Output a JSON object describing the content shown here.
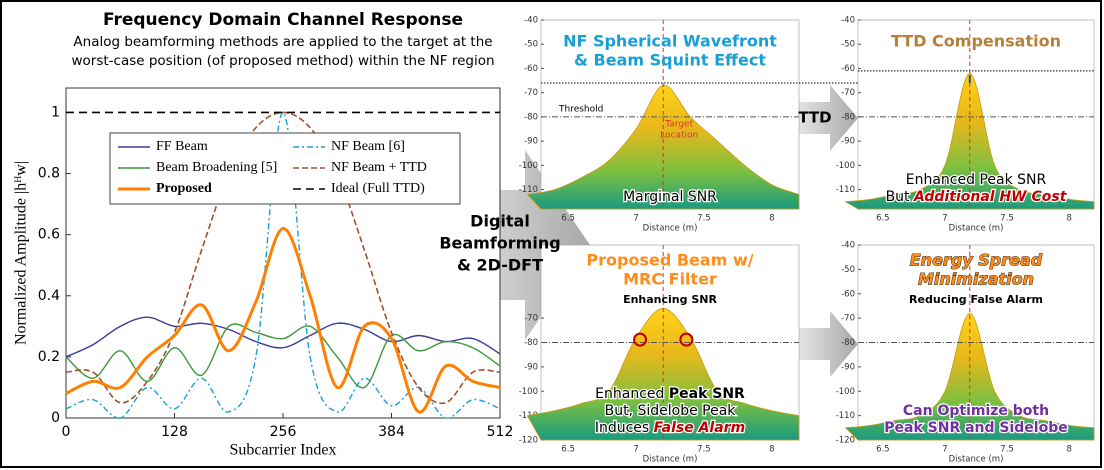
{
  "chart_data": [
    {
      "type": "line",
      "title": "Frequency Domain Channel Response",
      "subtitle": [
        "Analog beamforming methods are applied to the target at the",
        "worst-case position (of proposed method) within the NF region"
      ],
      "xlabel": "Subcarrier Index",
      "ylabel": "Normalized Amplitude |hᴴw|",
      "x": [
        0,
        32,
        64,
        96,
        128,
        160,
        192,
        224,
        256,
        288,
        320,
        352,
        384,
        416,
        448,
        480,
        512
      ],
      "xlim": [
        0,
        512
      ],
      "xticks": [
        0,
        128,
        256,
        384,
        512
      ],
      "ylim": [
        0,
        1.08
      ],
      "yticks": [
        0,
        0.2,
        0.4,
        0.6,
        0.8,
        1
      ],
      "series": [
        {
          "name": "FF Beam",
          "color": "#3b3ba0",
          "dash": "",
          "width": 1.4,
          "values": [
            0.2,
            0.24,
            0.3,
            0.33,
            0.3,
            0.31,
            0.29,
            0.25,
            0.23,
            0.27,
            0.31,
            0.29,
            0.25,
            0.27,
            0.25,
            0.26,
            0.21
          ]
        },
        {
          "name": "NF Beam [6]",
          "color": "#1a9fd4",
          "dash": "6 3 2 3",
          "width": 1.4,
          "values": [
            0.03,
            0.06,
            0,
            0.1,
            0.03,
            0.13,
            0.02,
            0.2,
            1,
            0.2,
            0.02,
            0.13,
            0.04,
            0.1,
            0,
            0.06,
            0.03
          ]
        },
        {
          "name": "Beam Broadening [5]",
          "color": "#3a9a3a",
          "dash": "",
          "width": 1.4,
          "values": [
            0.2,
            0.13,
            0.22,
            0.12,
            0.23,
            0.14,
            0.3,
            0.28,
            0.26,
            0.3,
            0.2,
            0.1,
            0.27,
            0.22,
            0.25,
            0.23,
            0.17
          ]
        },
        {
          "name": "NF Beam + TTD",
          "color": "#a0522d",
          "dash": "6 3",
          "width": 1.6,
          "values": [
            0.15,
            0.15,
            0.05,
            0.12,
            0.28,
            0.55,
            0.8,
            0.95,
            1,
            0.95,
            0.8,
            0.55,
            0.28,
            0.1,
            0.05,
            0.15,
            0.15
          ]
        },
        {
          "name": "Proposed",
          "color": "#ff8000",
          "dash": "",
          "width": 3,
          "bold": true,
          "values": [
            0.08,
            0.12,
            0.1,
            0.2,
            0.27,
            0.37,
            0.22,
            0.38,
            0.62,
            0.4,
            0.1,
            0.3,
            0.26,
            0.02,
            0.17,
            0.12,
            0.1
          ]
        },
        {
          "name": "Ideal (Full TTD)",
          "color": "#000000",
          "dash": "8 5",
          "width": 1.6,
          "values": [
            1,
            1,
            1,
            1,
            1,
            1,
            1,
            1,
            1,
            1,
            1,
            1,
            1,
            1,
            1,
            1,
            1
          ]
        }
      ]
    },
    {
      "type": "area",
      "title": [
        "NF Spherical Wavefront",
        "& Beam Squint Effect"
      ],
      "title_color": "#1a9fd4",
      "xlabel": "Distance (m)",
      "x": [
        6.2,
        6.4,
        6.6,
        6.8,
        7,
        7.2,
        7.4,
        7.6,
        7.8,
        8,
        8.2
      ],
      "values": [
        -112,
        -110,
        -105,
        -98,
        -85,
        -67,
        -80,
        -90,
        -100,
        -108,
        -112
      ],
      "xlim": [
        6.3,
        8.2
      ],
      "xticks": [
        6.5,
        7,
        7.5,
        8
      ],
      "ylim": [
        -40,
        -118
      ],
      "yticks": [
        -40,
        -50,
        -60,
        -70,
        -80,
        -90,
        -100,
        -110
      ],
      "threshold_level": -80,
      "threshold_label": "Threshold",
      "reference_level": -66,
      "target": 7.2,
      "target_label": [
        "Target",
        "Location"
      ],
      "caption": [
        [
          {
            "text": "Marginal SNR"
          }
        ]
      ]
    },
    {
      "type": "area",
      "title": [
        "TTD Compensation"
      ],
      "title_color": "#b5803a",
      "xlabel": "Distance (m)",
      "x": [
        6.2,
        6.4,
        6.6,
        6.8,
        7,
        7.2,
        7.4,
        7.6,
        7.8,
        8,
        8.2
      ],
      "values": [
        -115,
        -114,
        -112,
        -110,
        -100,
        -62,
        -100,
        -110,
        -112,
        -114,
        -115
      ],
      "xlim": [
        6.3,
        8.2
      ],
      "xticks": [
        6.5,
        7,
        7.5,
        8
      ],
      "ylim": [
        -40,
        -118
      ],
      "yticks": [
        -40,
        -50,
        -60,
        -70,
        -80,
        -90,
        -100,
        -110
      ],
      "threshold_level": -80,
      "reference_level": -61,
      "target": 7.2,
      "caption": [
        [
          {
            "text": "Enhanced Peak SNR"
          }
        ],
        [
          {
            "text": "But "
          },
          {
            "text": "Additional HW Cost",
            "color": "#c00000",
            "italic": true
          }
        ]
      ]
    },
    {
      "type": "area",
      "title": [
        "Proposed Beam w/",
        "MRC Filter"
      ],
      "title_color": "#ff8c1a",
      "subtitle": "Enhancing SNR",
      "xlabel": "Distance (m)",
      "x": [
        6.2,
        6.4,
        6.6,
        6.8,
        7,
        7.2,
        7.4,
        7.6,
        7.8,
        8,
        8.2
      ],
      "values": [
        -110,
        -108,
        -105,
        -100,
        -78,
        -66,
        -78,
        -100,
        -105,
        -108,
        -110
      ],
      "xlim": [
        6.3,
        8.2
      ],
      "xticks": [
        6.5,
        7,
        7.5,
        8
      ],
      "ylim": [
        -40,
        -120
      ],
      "yticks": [
        -70,
        -80,
        -90,
        -100,
        -110,
        -120
      ],
      "threshold_level": -80,
      "target": 7.2,
      "caption": [
        [
          {
            "text": "Enhanced "
          },
          {
            "text": "Peak SNR",
            "bold": true
          }
        ],
        [
          {
            "text": "But, Sidelobe Peak"
          }
        ],
        [
          {
            "text": "Induces "
          },
          {
            "text": "False Alarm",
            "color": "#c00000",
            "italic": true
          }
        ]
      ]
    },
    {
      "type": "area",
      "title": [
        "Energy Spread",
        "Minimization"
      ],
      "title_color": "#ff8c1a",
      "title_outline": true,
      "subtitle": "Reducing False Alarm",
      "xlabel": "Distance (m)",
      "x": [
        6.2,
        6.4,
        6.6,
        6.8,
        7,
        7.2,
        7.4,
        7.6,
        7.8,
        8,
        8.2
      ],
      "values": [
        -115,
        -114,
        -112,
        -110,
        -100,
        -68,
        -100,
        -110,
        -112,
        -114,
        -115
      ],
      "xlim": [
        6.3,
        8.2
      ],
      "xticks": [
        6.5,
        7,
        7.5,
        8
      ],
      "ylim": [
        -40,
        -120
      ],
      "yticks": [
        -40,
        -50,
        -60,
        -70,
        -80,
        -90,
        -100,
        -110,
        -120
      ],
      "threshold_level": -80,
      "target": 7.2,
      "caption": [
        [
          {
            "text": "Can Optimize both",
            "color": "#7030a0"
          }
        ],
        [
          {
            "text": "Peak SNR and Sidelobe",
            "color": "#7030a0"
          }
        ]
      ]
    }
  ],
  "arrows": {
    "main": [
      "Digital",
      "Beamforming",
      "& 2D-DFT"
    ],
    "ttd": "TTD"
  }
}
